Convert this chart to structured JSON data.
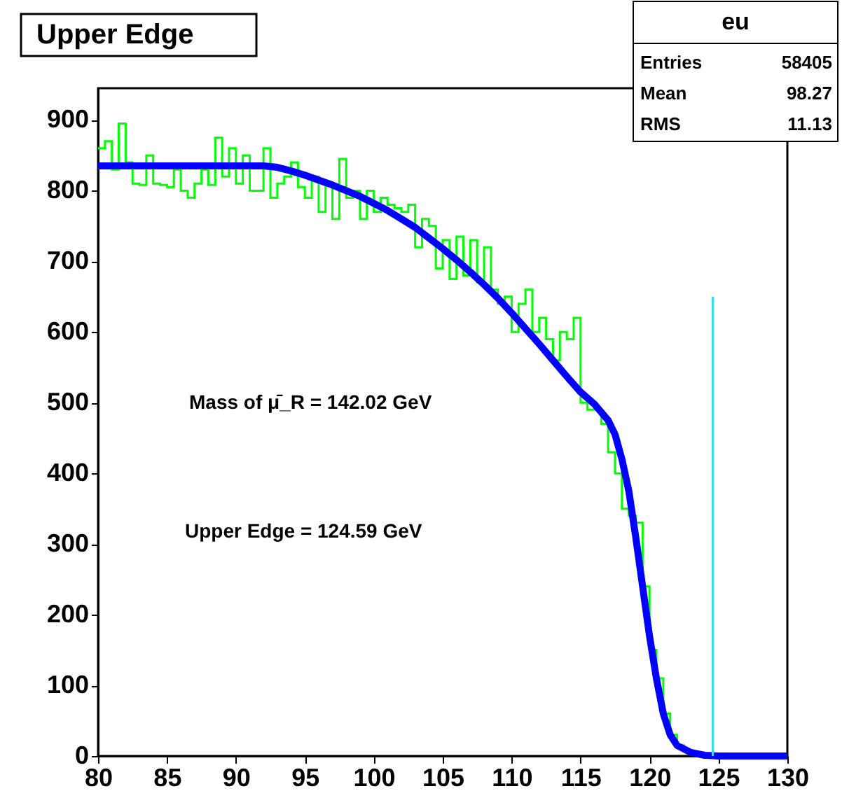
{
  "chart_data": {
    "type": "histogram",
    "title": "Upper Edge",
    "bins": [
      80,
      80.5,
      81,
      81.5,
      82,
      82.5,
      83,
      83.5,
      84,
      84.5,
      85,
      85.5,
      86,
      86.5,
      87,
      87.5,
      88,
      88.5,
      89,
      89.5,
      90,
      90.5,
      91,
      91.5,
      92,
      92.5,
      93,
      93.5,
      94,
      94.5,
      95,
      95.5,
      96,
      96.5,
      97,
      97.5,
      98,
      98.5,
      99,
      99.5,
      100,
      100.5,
      101,
      101.5,
      102,
      102.5,
      103,
      103.5,
      104,
      104.5,
      105,
      105.5,
      106,
      106.5,
      107,
      107.5,
      108,
      108.5,
      109,
      109.5,
      110,
      110.5,
      111,
      111.5,
      112,
      112.5,
      113,
      113.5,
      114,
      114.5,
      115,
      115.5,
      116,
      116.5,
      117,
      117.5,
      118,
      118.5,
      119,
      119.5,
      120,
      120.5,
      121,
      121.5,
      122,
      122.5,
      123,
      123.5,
      124,
      124.5,
      125,
      125.5,
      126,
      126.5,
      127,
      127.5,
      128,
      128.5,
      129,
      129.5,
      130
    ],
    "series": [
      {
        "color": "#00ff00",
        "values": [
          860,
          870,
          830,
          895,
          840,
          810,
          808,
          850,
          810,
          808,
          805,
          830,
          800,
          790,
          810,
          830,
          808,
          875,
          820,
          860,
          810,
          850,
          800,
          800,
          860,
          790,
          810,
          820,
          840,
          805,
          790,
          820,
          770,
          810,
          760,
          845,
          790,
          800,
          760,
          800,
          770,
          790,
          780,
          775,
          770,
          780,
          720,
          760,
          750,
          690,
          730,
          675,
          735,
          680,
          730,
          670,
          720,
          660,
          640,
          650,
          600,
          640,
          660,
          600,
          620,
          590,
          560,
          600,
          590,
          620,
          500,
          490,
          490,
          470,
          430,
          400,
          350,
          340,
          330,
          240,
          150,
          110,
          60,
          30,
          15,
          8,
          5,
          2,
          1,
          0,
          0,
          0,
          0,
          0,
          0,
          0,
          0,
          0,
          0,
          0
        ]
      },
      {
        "type": "line",
        "color": "#0000ff",
        "x": [
          80,
          82,
          84,
          86,
          88,
          90,
          92,
          93,
          94,
          95,
          96,
          97,
          98,
          99,
          100,
          101,
          102,
          103,
          104,
          105,
          106,
          107,
          108,
          109,
          110,
          111,
          112,
          113,
          114,
          115,
          116,
          117,
          117.5,
          118,
          118.5,
          119,
          119.5,
          120,
          120.5,
          121,
          121.5,
          122,
          123,
          124,
          125,
          130
        ],
        "values": [
          835,
          835,
          835,
          835,
          835,
          835,
          835,
          833,
          828,
          822,
          815,
          808,
          800,
          792,
          782,
          772,
          760,
          748,
          733,
          718,
          702,
          685,
          667,
          648,
          627,
          605,
          583,
          560,
          537,
          515,
          498,
          475,
          455,
          420,
          375,
          310,
          240,
          170,
          110,
          60,
          30,
          15,
          5,
          1,
          0,
          0
        ]
      },
      {
        "type": "line",
        "color": "#33ddee",
        "x": [
          124.59,
          124.59
        ],
        "values": [
          0,
          650
        ]
      }
    ],
    "xlim": [
      80,
      130
    ],
    "xticks": [
      80,
      85,
      90,
      95,
      100,
      105,
      110,
      115,
      120,
      125,
      130
    ],
    "ylim": [
      0,
      945
    ],
    "yticks": [
      0,
      100,
      200,
      300,
      400,
      500,
      600,
      700,
      800,
      900
    ],
    "grid": false,
    "annotations": [
      "Mass of μ̄_R =  142.02 GeV",
      "Upper Edge =  124.59 GeV",
      "eu",
      "Entries",
      "58405",
      "Mean",
      "98.27",
      "RMS",
      "11.13"
    ]
  }
}
